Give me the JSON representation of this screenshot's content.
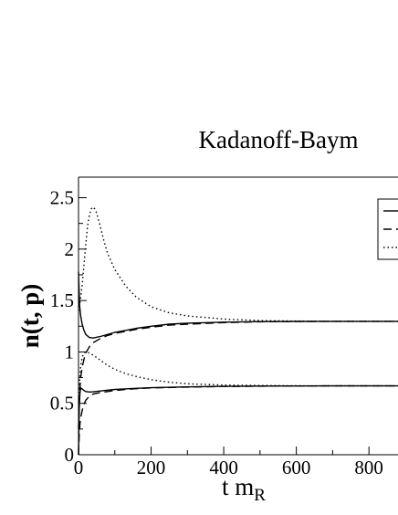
{
  "chart_data": {
    "type": "line",
    "title": "Kadanoff-Baym",
    "xlabel": "t m",
    "xlabel_subscript": "R",
    "ylabel": "n(t, p)",
    "xlim": [
      0,
      880
    ],
    "ylim": [
      0,
      2.7
    ],
    "xticks": [
      0,
      200,
      400,
      600,
      800
    ],
    "yticks": [
      0,
      0.5,
      1,
      1.5,
      2,
      2.5
    ],
    "xtick_labels": [
      "0",
      "200",
      "400",
      "600",
      "800"
    ],
    "ytick_labels": [
      "0",
      "0.5",
      "1",
      "1.5",
      "2",
      "2.5"
    ],
    "grid": false,
    "legend_placement": "top-right (cropped, entries not visible)",
    "series": [
      {
        "style": "solid",
        "x": [
          0,
          3,
          6,
          10,
          15,
          20,
          30,
          40,
          60,
          80,
          100,
          130,
          160,
          200,
          250,
          300,
          400,
          500,
          600,
          700,
          800,
          880
        ],
        "y": [
          1.78,
          1.45,
          1.35,
          1.27,
          1.21,
          1.17,
          1.14,
          1.135,
          1.15,
          1.17,
          1.19,
          1.21,
          1.23,
          1.25,
          1.27,
          1.28,
          1.29,
          1.295,
          1.297,
          1.298,
          1.298,
          1.298
        ]
      },
      {
        "style": "dashed",
        "x": [
          0,
          3,
          6,
          10,
          15,
          20,
          30,
          40,
          60,
          80,
          100,
          130,
          160,
          200,
          250,
          300,
          400,
          500,
          600,
          700,
          800,
          880
        ],
        "y": [
          0.25,
          0.6,
          0.75,
          0.85,
          0.93,
          0.99,
          1.05,
          1.09,
          1.13,
          1.16,
          1.18,
          1.2,
          1.22,
          1.24,
          1.26,
          1.27,
          1.285,
          1.293,
          1.296,
          1.298,
          1.298,
          1.298
        ]
      },
      {
        "style": "dotted",
        "x": [
          0,
          5,
          10,
          15,
          20,
          25,
          30,
          35,
          40,
          45,
          50,
          60,
          70,
          80,
          100,
          130,
          160,
          200,
          250,
          300,
          400,
          500,
          600,
          700,
          800,
          880
        ],
        "y": [
          1.4,
          1.5,
          1.65,
          1.85,
          2.05,
          2.22,
          2.33,
          2.39,
          2.41,
          2.39,
          2.35,
          2.22,
          2.08,
          1.96,
          1.8,
          1.64,
          1.53,
          1.44,
          1.38,
          1.35,
          1.32,
          1.305,
          1.3,
          1.298,
          1.298,
          1.298
        ]
      },
      {
        "style": "solid",
        "x": [
          0,
          2,
          4,
          6,
          10,
          15,
          20,
          30,
          40,
          60,
          80,
          100,
          150,
          200,
          300,
          400,
          500,
          600,
          700,
          800,
          880
        ],
        "y": [
          0.0,
          0.45,
          0.6,
          0.65,
          0.64,
          0.625,
          0.615,
          0.61,
          0.612,
          0.62,
          0.628,
          0.635,
          0.645,
          0.652,
          0.66,
          0.665,
          0.668,
          0.669,
          0.67,
          0.67,
          0.67
        ]
      },
      {
        "style": "dashed",
        "x": [
          0,
          2,
          4,
          6,
          10,
          15,
          20,
          30,
          40,
          60,
          80,
          100,
          150,
          200,
          300,
          400,
          500,
          600,
          700,
          800,
          880
        ],
        "y": [
          0.0,
          0.2,
          0.3,
          0.36,
          0.43,
          0.49,
          0.53,
          0.57,
          0.59,
          0.605,
          0.615,
          0.625,
          0.64,
          0.65,
          0.658,
          0.664,
          0.667,
          0.669,
          0.67,
          0.67,
          0.67
        ]
      },
      {
        "style": "dotted",
        "x": [
          0,
          3,
          6,
          10,
          15,
          20,
          30,
          40,
          60,
          80,
          100,
          130,
          160,
          200,
          250,
          300,
          400,
          500,
          600,
          700,
          800,
          880
        ],
        "y": [
          0.0,
          0.72,
          0.86,
          0.95,
          0.99,
          1.0,
          0.99,
          0.97,
          0.92,
          0.87,
          0.83,
          0.79,
          0.76,
          0.73,
          0.705,
          0.69,
          0.678,
          0.673,
          0.671,
          0.67,
          0.67,
          0.67
        ]
      }
    ]
  }
}
